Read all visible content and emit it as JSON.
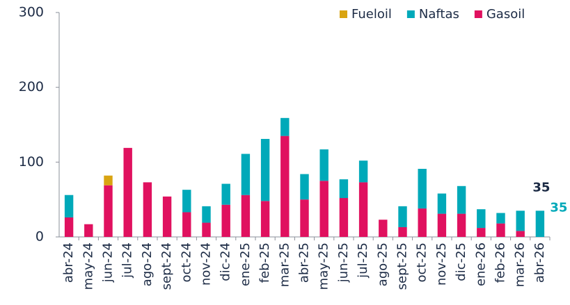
{
  "chart_data": {
    "type": "stacked_bar",
    "categories": [
      "abr-24",
      "may-24",
      "jun-24",
      "jul-24",
      "ago-24",
      "sept-24",
      "oct-24",
      "nov-24",
      "dic-24",
      "ene-25",
      "feb-25",
      "mar-25",
      "abr-25",
      "may-25",
      "jun-25",
      "jul-25",
      "ago-25",
      "sept-25",
      "oct-25",
      "nov-25",
      "dic-25",
      "ene-26",
      "feb-26",
      "mar-26",
      "abr-26"
    ],
    "series": [
      {
        "name": "Gasoil",
        "color": "#e0115f",
        "values": [
          26,
          17,
          69,
          119,
          73,
          54,
          33,
          19,
          43,
          56,
          48,
          135,
          50,
          75,
          52,
          73,
          23,
          13,
          38,
          31,
          31,
          12,
          18,
          8,
          0
        ]
      },
      {
        "name": "Naftas",
        "color": "#00a9b9",
        "values": [
          30,
          0,
          0,
          0,
          0,
          0,
          30,
          22,
          28,
          55,
          83,
          24,
          34,
          42,
          25,
          29,
          0,
          28,
          53,
          27,
          37,
          25,
          14,
          27,
          35
        ]
      },
      {
        "name": "Fueloil",
        "color": "#d9a411",
        "values": [
          0,
          0,
          13,
          0,
          0,
          0,
          0,
          0,
          0,
          0,
          0,
          0,
          0,
          0,
          0,
          0,
          0,
          0,
          0,
          0,
          0,
          0,
          0,
          0,
          0
        ]
      }
    ],
    "legend_order": [
      "Fueloil",
      "Naftas",
      "Gasoil"
    ],
    "annotations": [
      {
        "text": "35",
        "color": "#1c2b45"
      },
      {
        "text": "35",
        "color": "#00a9b9"
      }
    ],
    "ylim": [
      0,
      300
    ],
    "yticks": [
      0,
      100,
      200,
      300
    ],
    "grid": false
  }
}
